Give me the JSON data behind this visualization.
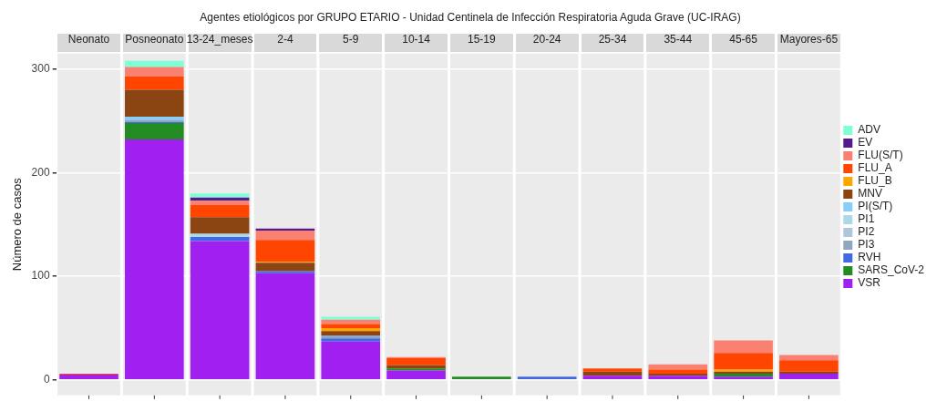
{
  "chart_data": {
    "type": "bar",
    "title": "Agentes etiológicos por GRUPO ETARIO - Unidad Centinela de Infección Respiratoria Aguda Grave (UC-IRAG)",
    "ylabel": "Número de casos",
    "categories": [
      "Neonato",
      "Posneonato",
      "13-24_meses",
      "2-4",
      "5-9",
      "10-14",
      "15-19",
      "20-24",
      "25-34",
      "35-44",
      "45-65",
      "Mayores-65"
    ],
    "stacked": true,
    "grid": true,
    "legend": "right",
    "ylim": [
      -15,
      315
    ],
    "yticks": [
      0,
      100,
      200,
      300
    ],
    "series": [
      {
        "name": "VSR",
        "color": "#a020f0",
        "values": [
          5,
          232,
          134,
          103,
          37,
          9,
          null,
          null,
          4,
          4,
          3,
          6
        ]
      },
      {
        "name": "SARS_CoV-2",
        "color": "#228b22",
        "values": [
          null,
          16,
          null,
          null,
          null,
          2,
          3,
          null,
          null,
          null,
          3,
          null
        ]
      },
      {
        "name": "RVH",
        "color": "#4169e1",
        "values": [
          null,
          1,
          4,
          2,
          3,
          null,
          null,
          3,
          null,
          null,
          null,
          null
        ]
      },
      {
        "name": "PI3",
        "color": "#8fa8c0",
        "values": [
          null,
          2,
          null,
          null,
          3,
          null,
          null,
          null,
          null,
          null,
          null,
          null
        ]
      },
      {
        "name": "PI2",
        "color": "#b0c4de",
        "values": [
          null,
          null,
          null,
          null,
          null,
          null,
          null,
          null,
          null,
          null,
          null,
          null
        ]
      },
      {
        "name": "PI1",
        "color": "#add8e6",
        "values": [
          null,
          null,
          3,
          null,
          null,
          null,
          null,
          null,
          null,
          null,
          null,
          null
        ]
      },
      {
        "name": "PI(S/T)",
        "color": "#87cefa",
        "values": [
          null,
          3,
          null,
          null,
          null,
          null,
          null,
          null,
          null,
          null,
          null,
          null
        ]
      },
      {
        "name": "MNV",
        "color": "#8b4513",
        "values": [
          null,
          26,
          16,
          8,
          4,
          3,
          null,
          null,
          4,
          2,
          2,
          2
        ]
      },
      {
        "name": "FLU_B",
        "color": "#ffa500",
        "values": [
          null,
          null,
          null,
          1,
          3,
          null,
          null,
          null,
          null,
          null,
          2,
          null
        ]
      },
      {
        "name": "FLU_A",
        "color": "#ff4500",
        "values": [
          1,
          13,
          12,
          21,
          4,
          7,
          null,
          null,
          3,
          4,
          16,
          11
        ]
      },
      {
        "name": "FLU(S/T)",
        "color": "#fa8072",
        "values": [
          null,
          9,
          4,
          9,
          4,
          1,
          null,
          null,
          null,
          5,
          12,
          5
        ]
      },
      {
        "name": "EV",
        "color": "#551a8b",
        "values": [
          null,
          null,
          3,
          2,
          null,
          null,
          null,
          null,
          null,
          null,
          null,
          null
        ]
      },
      {
        "name": "ADV",
        "color": "#7fffd4",
        "values": [
          null,
          6,
          4,
          null,
          3,
          null,
          null,
          null,
          null,
          null,
          null,
          null
        ]
      }
    ]
  }
}
